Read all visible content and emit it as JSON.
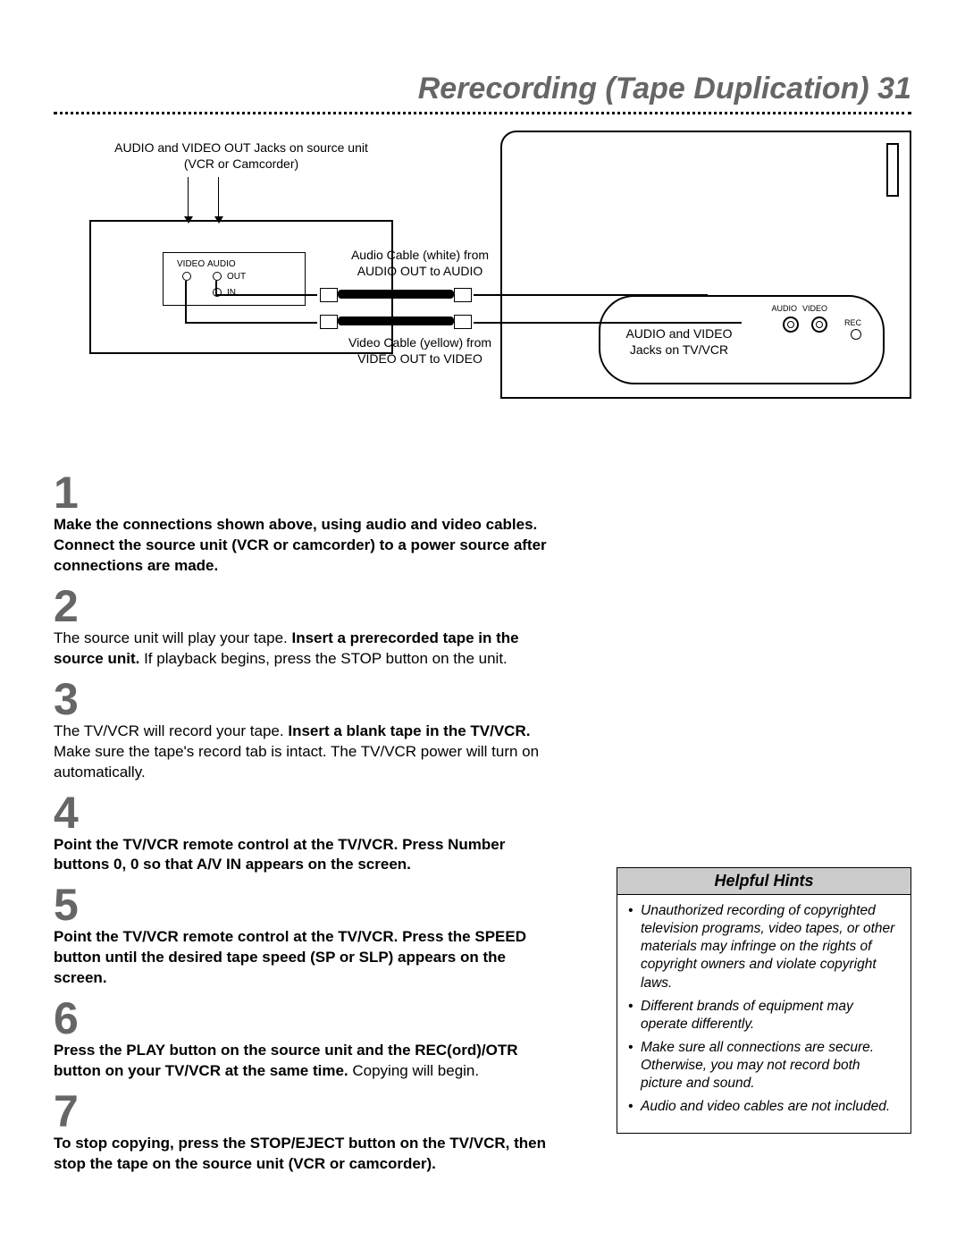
{
  "title": "Rerecording (Tape Duplication)  31",
  "diagram": {
    "src_caption": "AUDIO and VIDEO OUT Jacks on source unit\n(VCR or Camcorder)",
    "audio_cable_label": "Audio Cable (white) from\nAUDIO OUT to AUDIO",
    "video_cable_label": "Video Cable (yellow) from\nVIDEO OUT to VIDEO",
    "tvvcr_jack_label": "AUDIO and VIDEO\nJacks on TV/VCR",
    "src_jack_video": "VIDEO",
    "src_jack_audio": "AUDIO",
    "src_jack_out": "OUT",
    "src_jack_in": "IN",
    "tv_audio": "AUDIO",
    "tv_video": "VIDEO",
    "tv_rec": "REC"
  },
  "steps": [
    {
      "num": "1",
      "html": "<b>Make the connections shown above, using audio and video cables. Connect the source unit (VCR or camcorder) to a power source after connections are made.</b>"
    },
    {
      "num": "2",
      "html": "The source unit will play your tape. <b>Insert a prerecorded tape in the source unit.</b> If playback begins, press the STOP button on the unit."
    },
    {
      "num": "3",
      "html": "The TV/VCR will record your tape. <b>Insert a blank tape in the TV/VCR.</b> Make sure the tape's record tab is intact. The TV/VCR power will turn on automatically."
    },
    {
      "num": "4",
      "html": "<b>Point the TV/VCR remote control at the TV/VCR. Press Number buttons 0, 0 so that A/V IN appears on the screen.</b>"
    },
    {
      "num": "5",
      "html": "<b>Point the TV/VCR remote control at the TV/VCR. Press the SPEED button until the desired tape speed (SP or SLP) appears on the screen.</b>"
    },
    {
      "num": "6",
      "html": "<b>Press the PLAY button on the source unit and the REC(ord)/OTR button on your TV/VCR at the same time.</b> Copying will begin."
    },
    {
      "num": "7",
      "html": "<b>To stop copying, press the STOP/EJECT button on the TV/VCR, then stop the tape on the source unit (VCR or camcorder).</b>"
    }
  ],
  "hints": {
    "title": "Helpful Hints",
    "items": [
      "Unauthorized recording of copyrighted television programs, video tapes, or other materials may infringe on the rights of copyright owners and violate copyright laws.",
      "Different brands of equipment may operate differently.",
      "Make sure all connections are secure. Otherwise, you may not record both picture and sound.",
      "Audio and video cables are not included."
    ]
  },
  "style": {
    "title_color": "#666666",
    "stepnum_color": "#666666",
    "hints_bg": "#cccccc"
  }
}
